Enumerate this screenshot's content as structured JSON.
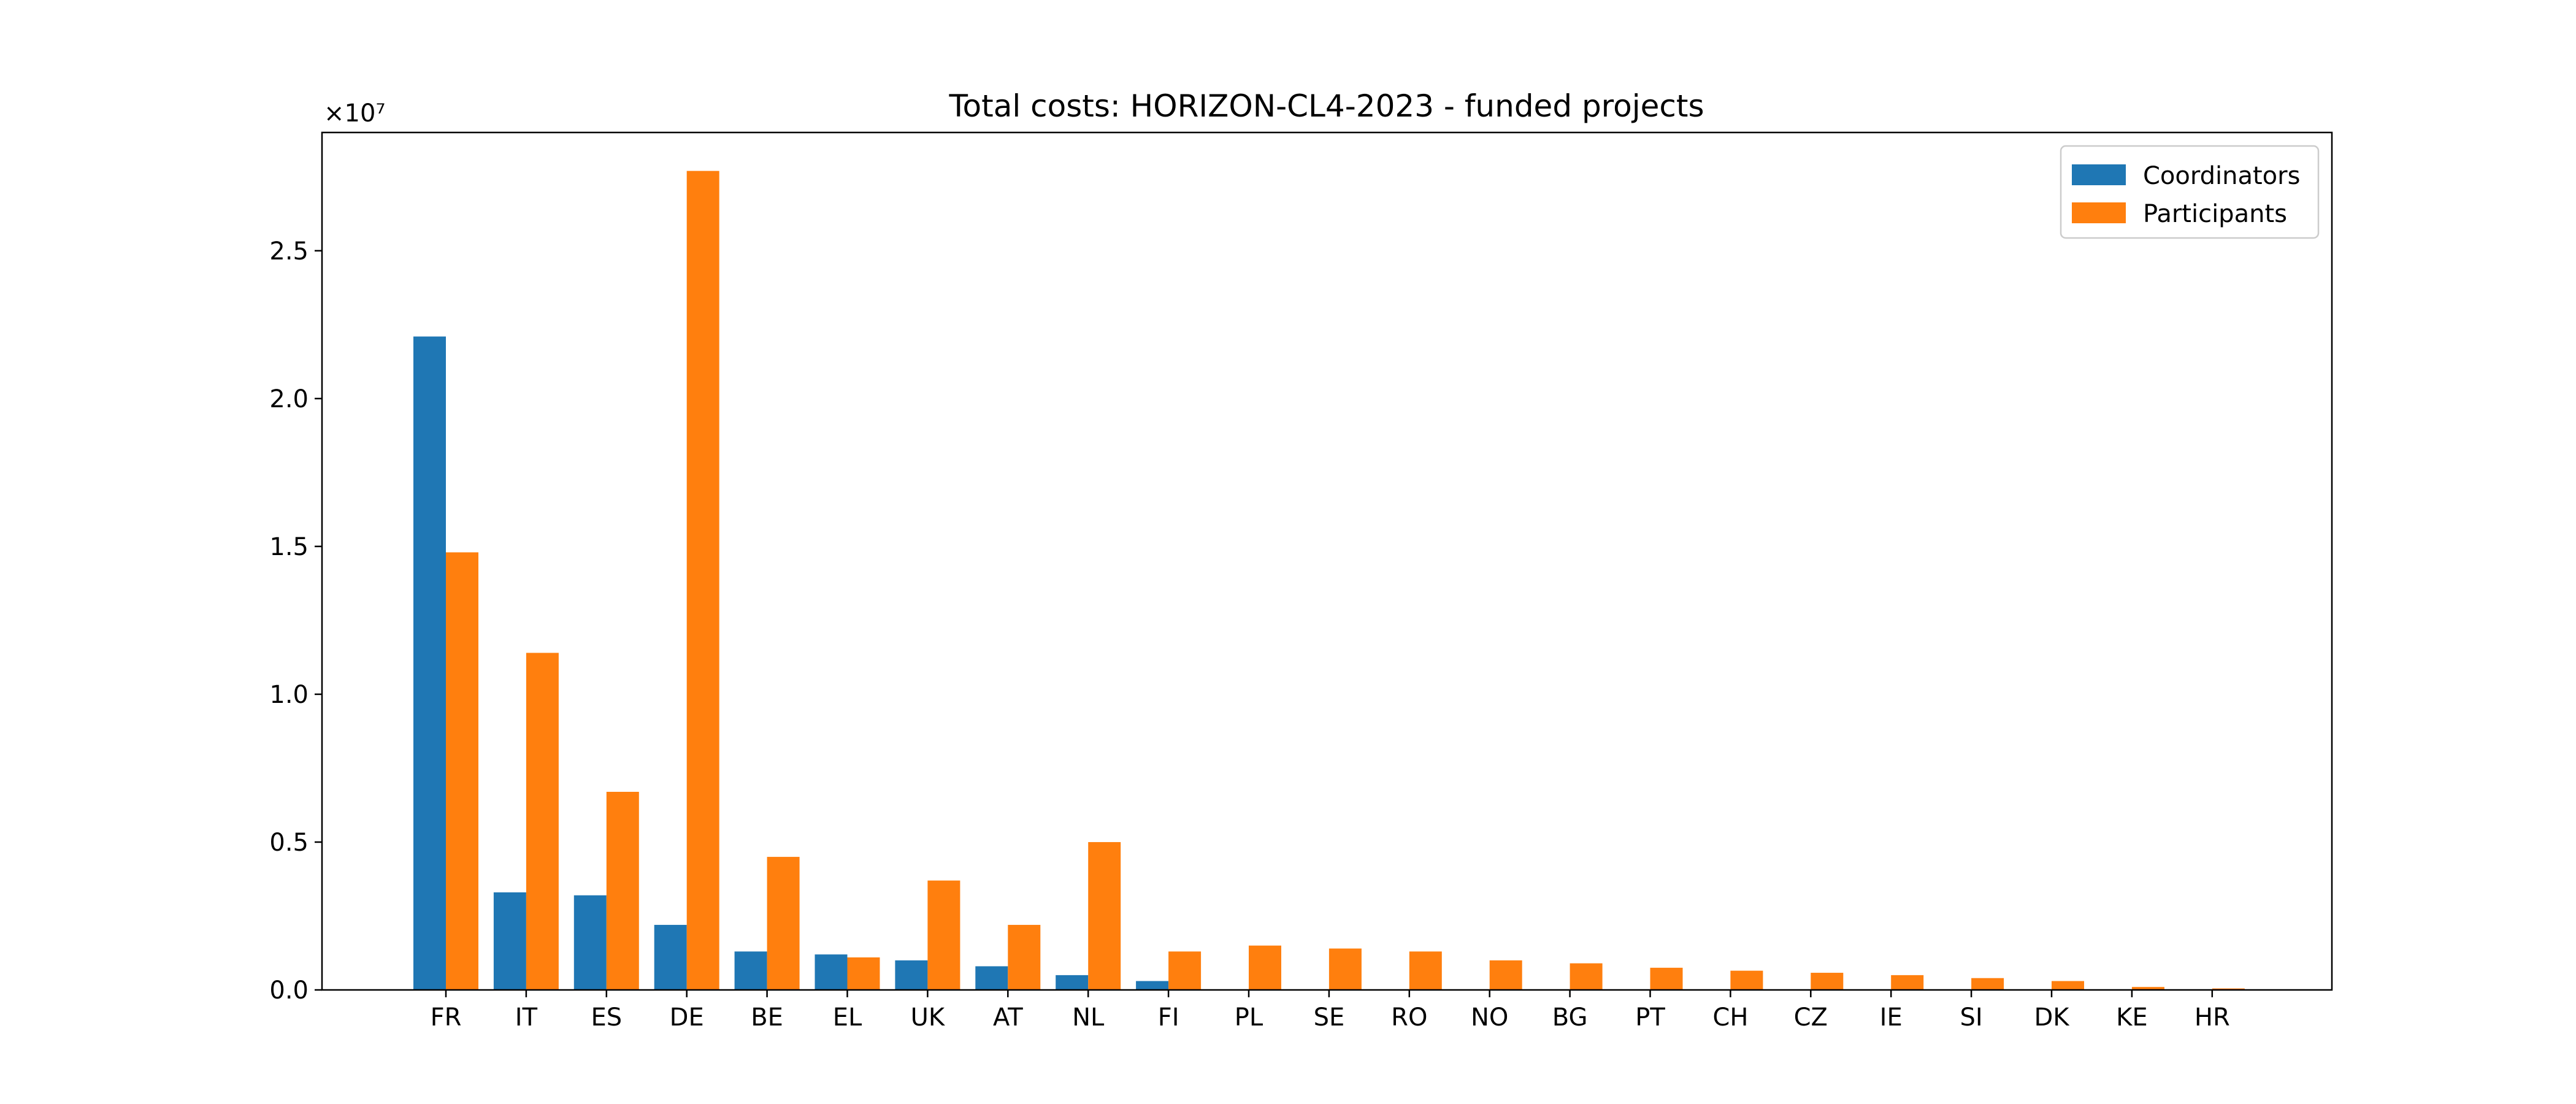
{
  "chart_data": {
    "type": "bar",
    "title": "Total costs: HORIZON-CL4-2023 - funded projects",
    "xlabel": "",
    "ylabel": "",
    "y_offset_label": "×10⁷",
    "y_scale": 10000000,
    "ylim": [
      0,
      2.9
    ],
    "yticks": [
      0.0,
      0.5,
      1.0,
      1.5,
      2.0,
      2.5
    ],
    "ytick_labels": [
      "0.0",
      "0.5",
      "1.0",
      "1.5",
      "2.0",
      "2.5"
    ],
    "grid": false,
    "legend_position": "top-right",
    "categories": [
      "FR",
      "IT",
      "ES",
      "DE",
      "BE",
      "EL",
      "UK",
      "AT",
      "NL",
      "FI",
      "PL",
      "SE",
      "RO",
      "NO",
      "BG",
      "PT",
      "CH",
      "CZ",
      "IE",
      "SI",
      "DK",
      "KE",
      "HR"
    ],
    "series": [
      {
        "name": "Coordinators",
        "color": "#1f77b4",
        "values": [
          2.21,
          0.33,
          0.32,
          0.22,
          0.13,
          0.12,
          0.1,
          0.08,
          0.05,
          0.03,
          0,
          0,
          0,
          0,
          0,
          0,
          0,
          0,
          0,
          0,
          0,
          0,
          0
        ]
      },
      {
        "name": "Participants",
        "color": "#ff7f0e",
        "values": [
          1.48,
          1.14,
          0.67,
          2.77,
          0.45,
          0.11,
          0.37,
          0.22,
          0.5,
          0.13,
          0.15,
          0.14,
          0.13,
          0.1,
          0.09,
          0.075,
          0.065,
          0.058,
          0.05,
          0.04,
          0.03,
          0.01,
          0.005
        ]
      }
    ]
  }
}
